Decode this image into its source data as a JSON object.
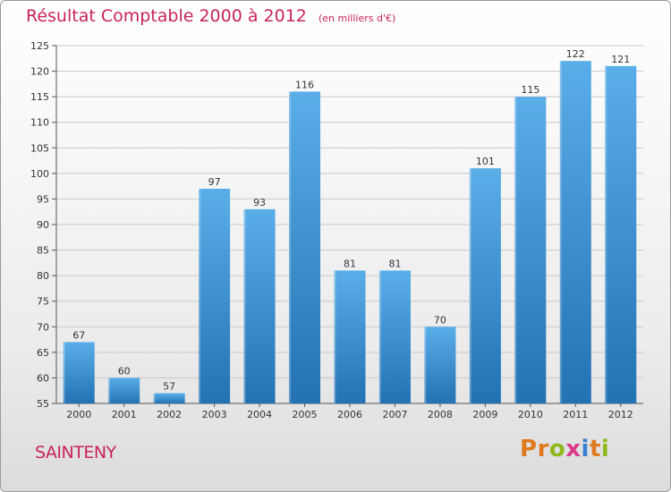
{
  "header": {
    "title": "Résultat Comptable 2000 à 2012",
    "subtitle": "(en milliers d'€)"
  },
  "footer": {
    "city": "SAINTENY",
    "logo_text": "Proxiti",
    "logo_colors": [
      "#e07a1f",
      "#e07a1f",
      "#8fb81b",
      "#d93a8c",
      "#3a7fd1",
      "#e07a1f",
      "#8fb81b"
    ]
  },
  "colors": {
    "bar_top": "#5aaee8",
    "bar_bottom": "#2272b4",
    "title": "#c8245a",
    "grid": "#c8c8c8"
  },
  "chart_data": {
    "type": "bar",
    "title": "Résultat Comptable 2000 à 2012",
    "subtitle": "(en milliers d'€)",
    "xlabel": "",
    "ylabel": "",
    "categories": [
      "2000",
      "2001",
      "2002",
      "2003",
      "2004",
      "2005",
      "2006",
      "2007",
      "2008",
      "2009",
      "2010",
      "2011",
      "2012"
    ],
    "values": [
      67,
      60,
      57,
      97,
      93,
      116,
      81,
      81,
      70,
      101,
      115,
      122,
      121
    ],
    "ylim": [
      55,
      125
    ],
    "yticks": [
      55,
      60,
      65,
      70,
      75,
      80,
      85,
      90,
      95,
      100,
      105,
      110,
      115,
      120,
      125
    ],
    "grid": true
  }
}
